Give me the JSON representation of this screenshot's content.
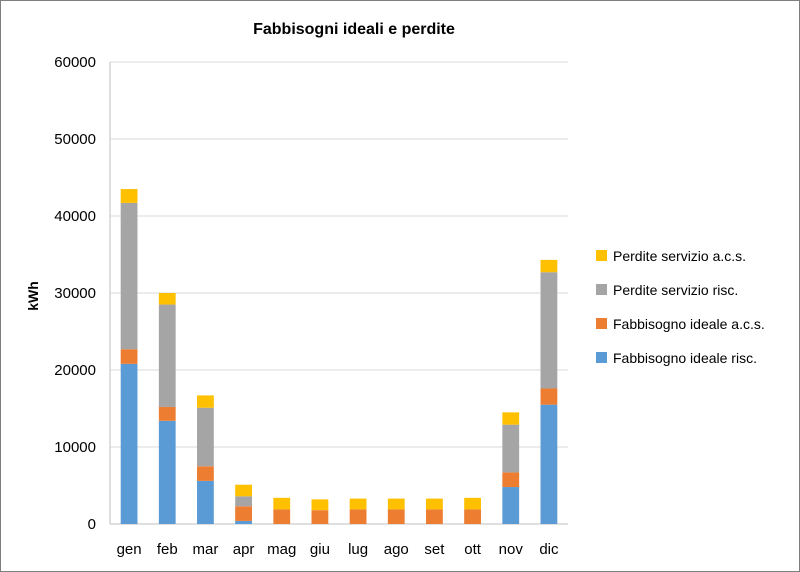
{
  "chart_data": {
    "type": "bar",
    "stacked": true,
    "title": "Fabbisogni ideali e perdite",
    "xlabel": "",
    "ylabel": "kWh",
    "ylim": [
      0,
      60000
    ],
    "yticks": [
      0,
      10000,
      20000,
      30000,
      40000,
      50000,
      60000
    ],
    "grid": true,
    "legend_position": "right",
    "categories": [
      "gen",
      "feb",
      "mar",
      "apr",
      "mag",
      "giu",
      "lug",
      "ago",
      "set",
      "ott",
      "nov",
      "dic"
    ],
    "series": [
      {
        "name": "Fabbisogno ideale risc.",
        "color": "#5b9bd5",
        "values": [
          20800,
          13400,
          5600,
          400,
          0,
          0,
          0,
          0,
          0,
          0,
          4800,
          15500
        ]
      },
      {
        "name": "Fabbisogno ideale a.c.s.",
        "color": "#ed7d31",
        "values": [
          1900,
          1800,
          1900,
          1900,
          1900,
          1800,
          1900,
          1900,
          1900,
          1900,
          1900,
          2100
        ]
      },
      {
        "name": "Perdite servizio risc.",
        "color": "#a5a5a5",
        "values": [
          19000,
          13300,
          7600,
          1300,
          0,
          0,
          0,
          0,
          0,
          0,
          6200,
          15100
        ]
      },
      {
        "name": "Perdite servizio a.c.s.",
        "color": "#ffc000",
        "values": [
          1800,
          1500,
          1600,
          1500,
          1500,
          1400,
          1400,
          1400,
          1400,
          1500,
          1600,
          1600
        ]
      }
    ]
  }
}
